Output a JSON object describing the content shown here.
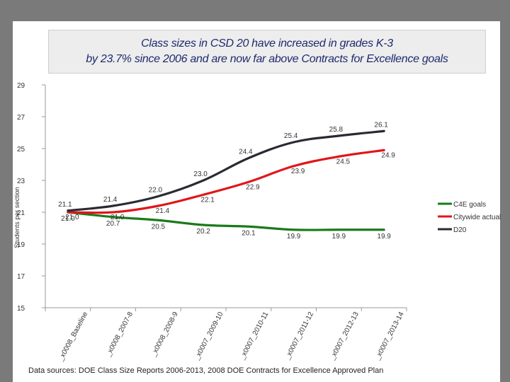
{
  "title_line1": "Class sizes in CSD 20 have increased in grades K-3",
  "title_line2": "by 23.7% since 2006 and are now far above Contracts for Excellence goals",
  "source": "Data sources: DOE Class Size Reports 2006-2013, 2008 DOE Contracts for Excellence Approved Plan",
  "chart_data": {
    "type": "line",
    "ylabel": "Students per section",
    "xlabel": "",
    "ylim": [
      15,
      29
    ],
    "yticks": [
      15,
      17,
      19,
      21,
      23,
      25,
      27,
      29
    ],
    "grid": false,
    "legend_position": "right",
    "categories": [
      "_x0008_Baseline",
      "_x0008_2007-8",
      "_x0008_2008-9",
      "_x0007_2009-10",
      "_x0007_2010-11",
      "_x0007_2011-12",
      "_x0007_2012-13",
      "_x0007_2013-14"
    ],
    "series": [
      {
        "name": "C4E goals",
        "color": "#1a7a1a",
        "values": [
          21.0,
          20.7,
          20.5,
          20.2,
          20.1,
          19.9,
          19.9,
          19.9
        ],
        "labels": [
          "21.0",
          "20.7",
          "20.5",
          "20.2",
          "20.1",
          "19.9",
          "19.9",
          "19.9"
        ]
      },
      {
        "name": "Citywide actual",
        "color": "#e0161b",
        "values": [
          21.0,
          21.0,
          21.4,
          22.1,
          22.9,
          23.9,
          24.5,
          24.9
        ],
        "labels": [
          "21.0",
          "21.0",
          "21.4",
          "22.1",
          "22.9",
          "23.9",
          "24.5",
          "24.9"
        ]
      },
      {
        "name": "D20",
        "color": "#2a2a33",
        "values": [
          21.1,
          21.4,
          22.0,
          23.0,
          24.4,
          25.4,
          25.8,
          26.1
        ],
        "labels": [
          "21.1",
          "21.4",
          "22.0",
          "23.0",
          "24.4",
          "25.4",
          "25.8",
          "26.1"
        ]
      }
    ]
  }
}
